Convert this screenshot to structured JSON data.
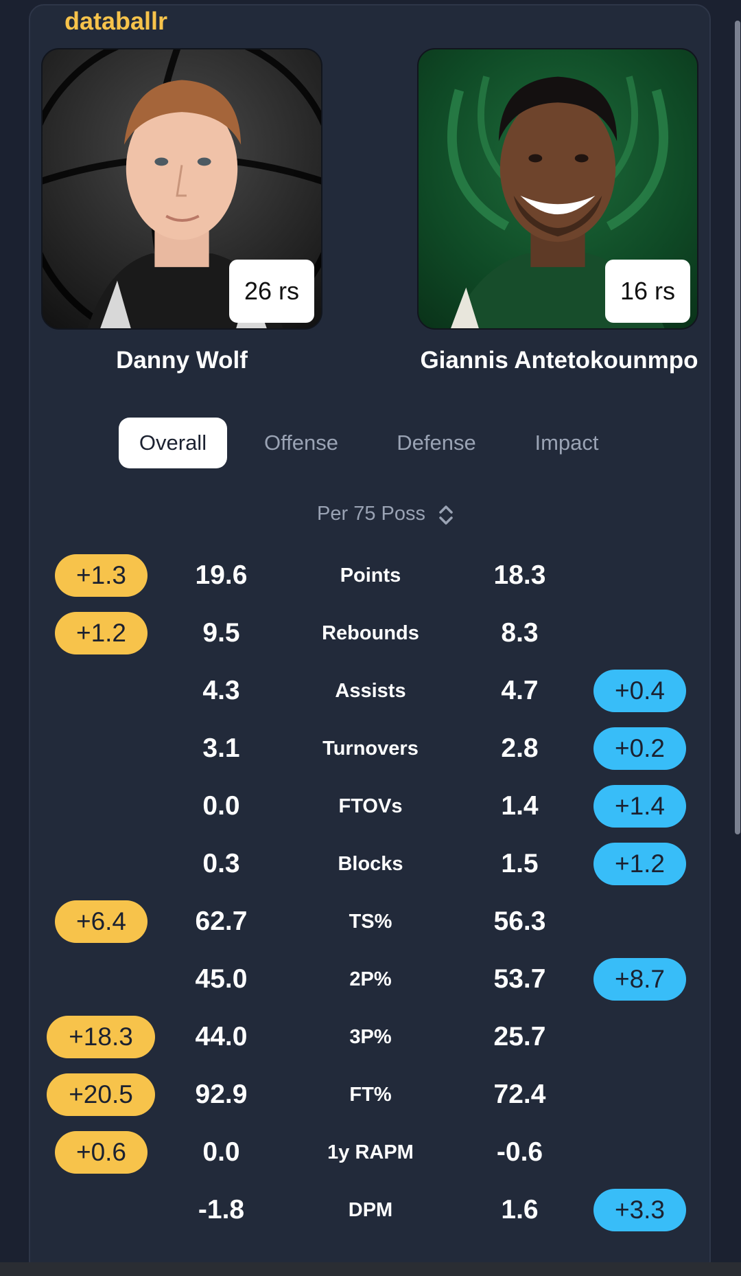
{
  "brand": "databallr",
  "players": {
    "left": {
      "name": "Danny Wolf",
      "badge": "26 rs"
    },
    "right": {
      "name": "Giannis Antetokounmpo",
      "badge": "16 rs"
    }
  },
  "tabs": [
    {
      "label": "Overall",
      "active": true
    },
    {
      "label": "Offense",
      "active": false
    },
    {
      "label": "Defense",
      "active": false
    },
    {
      "label": "Impact",
      "active": false
    }
  ],
  "per_mode": {
    "label": "Per 75 Poss",
    "icon": "chevron-up-down-icon"
  },
  "colors": {
    "left_accent": "#f7c34b",
    "right_accent": "#38bdf8"
  },
  "stats": [
    {
      "label": "Points",
      "left": "19.6",
      "right": "18.3",
      "left_diff": "+1.3",
      "right_diff": ""
    },
    {
      "label": "Rebounds",
      "left": "9.5",
      "right": "8.3",
      "left_diff": "+1.2",
      "right_diff": ""
    },
    {
      "label": "Assists",
      "left": "4.3",
      "right": "4.7",
      "left_diff": "",
      "right_diff": "+0.4"
    },
    {
      "label": "Turnovers",
      "left": "3.1",
      "right": "2.8",
      "left_diff": "",
      "right_diff": "+0.2"
    },
    {
      "label": "FTOVs",
      "left": "0.0",
      "right": "1.4",
      "left_diff": "",
      "right_diff": "+1.4"
    },
    {
      "label": "Blocks",
      "left": "0.3",
      "right": "1.5",
      "left_diff": "",
      "right_diff": "+1.2"
    },
    {
      "label": "TS%",
      "left": "62.7",
      "right": "56.3",
      "left_diff": "+6.4",
      "right_diff": ""
    },
    {
      "label": "2P%",
      "left": "45.0",
      "right": "53.7",
      "left_diff": "",
      "right_diff": "+8.7"
    },
    {
      "label": "3P%",
      "left": "44.0",
      "right": "25.7",
      "left_diff": "+18.3",
      "right_diff": ""
    },
    {
      "label": "FT%",
      "left": "92.9",
      "right": "72.4",
      "left_diff": "+20.5",
      "right_diff": ""
    },
    {
      "label": "1y RAPM",
      "left": "0.0",
      "right": "-0.6",
      "left_diff": "+0.6",
      "right_diff": ""
    },
    {
      "label": "DPM",
      "left": "-1.8",
      "right": "1.6",
      "left_diff": "",
      "right_diff": "+3.3"
    }
  ]
}
